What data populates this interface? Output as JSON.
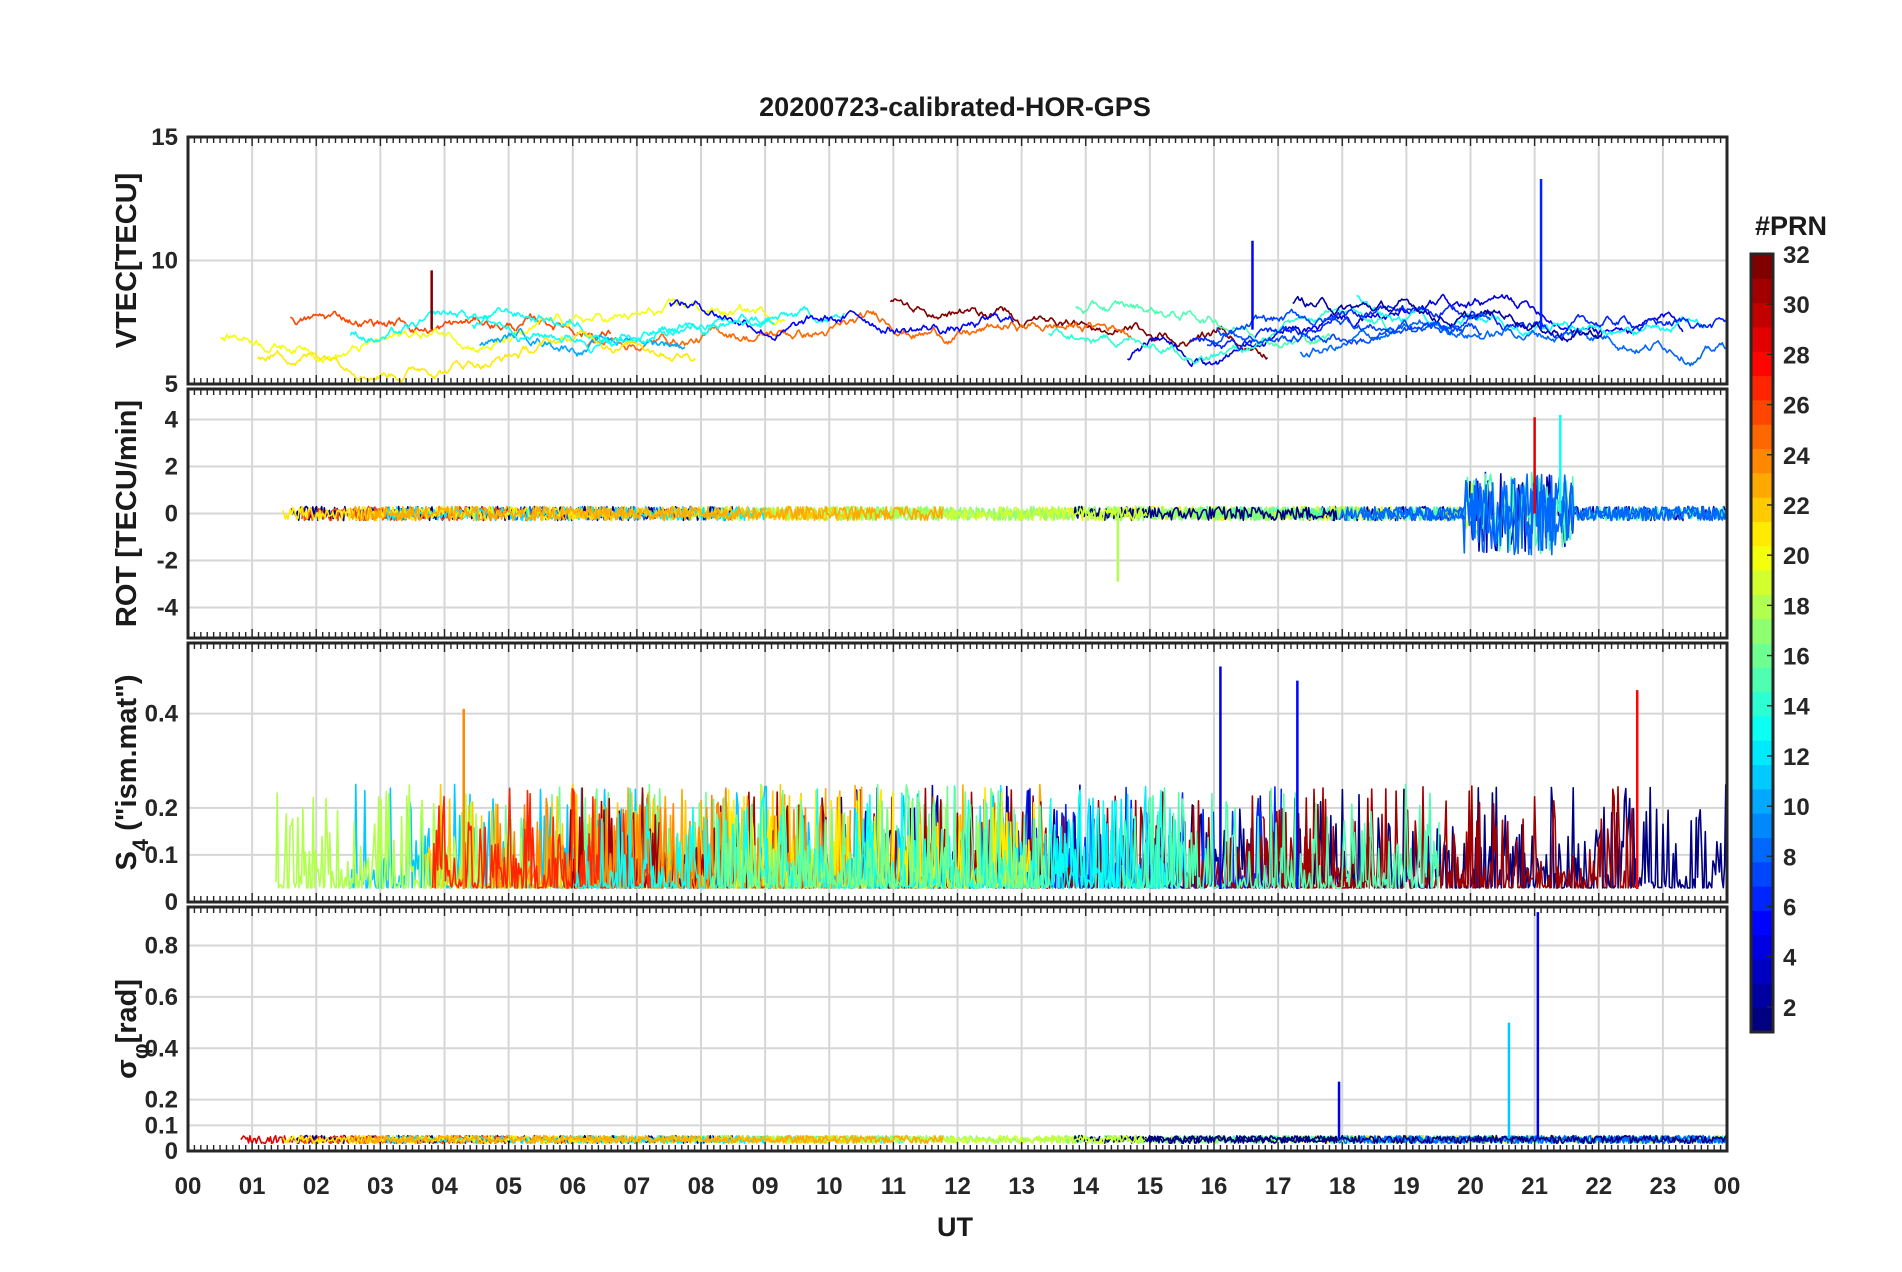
{
  "chart_data": {
    "type": "line",
    "title": "20200723-calibrated-HOR-GPS",
    "xlabel": "UT",
    "x_ticks": [
      "00",
      "01",
      "02",
      "03",
      "04",
      "05",
      "06",
      "07",
      "08",
      "09",
      "10",
      "11",
      "12",
      "13",
      "14",
      "15",
      "16",
      "17",
      "18",
      "19",
      "20",
      "21",
      "22",
      "23",
      "00"
    ],
    "xlim": [
      0,
      24
    ],
    "grid": true,
    "colorbar": {
      "title": "#PRN",
      "colormap": "jet",
      "range": [
        1,
        32
      ],
      "ticks": [
        "2",
        "4",
        "6",
        "8",
        "10",
        "12",
        "14",
        "16",
        "18",
        "20",
        "22",
        "24",
        "26",
        "28",
        "30",
        "32"
      ]
    },
    "panels": [
      {
        "ylabel": "VTEC[TECU]",
        "ylim": [
          5,
          15
        ],
        "y_ticks": [
          "5",
          "10",
          "15"
        ],
        "series_note": "per-PRN VTEC traces, mostly 5.5-9.5 TECU, peak near 13.3 TECU at 21.1 UT",
        "events": [
          {
            "ut": 21.1,
            "value": 13.3,
            "prn": 6
          },
          {
            "ut": 16.6,
            "value": 10.8,
            "prn": 5
          },
          {
            "ut": 3.8,
            "value": 9.6,
            "prn": 32
          }
        ]
      },
      {
        "ylabel": "ROT [TECU/min]",
        "ylim": [
          -5.3,
          5.3
        ],
        "y_ticks": [
          "-4",
          "-2",
          "0",
          "2",
          "4"
        ],
        "series_note": "per-PRN rate of TEC, near 0 with bursts up to +/-4 around 20-21.5 UT",
        "events": [
          {
            "ut": 21.0,
            "value": 4.1,
            "prn": 29
          },
          {
            "ut": 21.4,
            "value": 4.2,
            "prn": 13
          },
          {
            "ut": 14.5,
            "value": -2.9,
            "prn": 18
          }
        ]
      },
      {
        "ylabel": "S4 (\"ism.mat\")",
        "ylabel_main": "S",
        "ylabel_sub": "4",
        "ylabel_rest": " (\"ism.mat\")",
        "ylim": [
          0,
          0.55
        ],
        "y_ticks": [
          "0",
          "0.1",
          "0.2",
          "0.4"
        ],
        "series_note": "per-PRN amplitude scintillation index, mostly 0-0.15 with spikes",
        "events": [
          {
            "ut": 16.1,
            "value": 0.5,
            "prn": 4
          },
          {
            "ut": 17.3,
            "value": 0.47,
            "prn": 5
          },
          {
            "ut": 4.3,
            "value": 0.41,
            "prn": 24
          },
          {
            "ut": 22.6,
            "value": 0.45,
            "prn": 28
          }
        ]
      },
      {
        "ylabel": "sigma_phi [rad]",
        "ylabel_main": "σ",
        "ylabel_sub": "φ",
        "ylabel_rest": "[rad]",
        "ylim": [
          0,
          0.95
        ],
        "y_ticks": [
          "0",
          "0.1",
          "0.2",
          "0.4",
          "0.6",
          "0.8"
        ],
        "series_note": "per-PRN phase scintillation index, mostly near 0.05",
        "events": [
          {
            "ut": 21.05,
            "value": 0.93,
            "prn": 4
          },
          {
            "ut": 20.6,
            "value": 0.5,
            "prn": 11
          },
          {
            "ut": 17.95,
            "value": 0.27,
            "prn": 4
          }
        ]
      }
    ]
  }
}
